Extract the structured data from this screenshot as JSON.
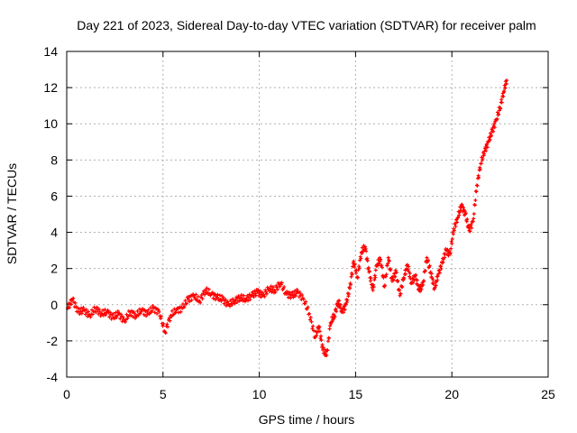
{
  "chart_data": {
    "type": "scatter",
    "title": "Day 221 of 2023, Sidereal Day-to-day VTEC variation (SDTVAR) for receiver palm",
    "xlabel": "GPS time / hours",
    "ylabel": "SDTVAR / TECUs",
    "xlim": [
      0,
      25
    ],
    "ylim": [
      -4,
      14
    ],
    "xticks": [
      "0",
      "5",
      "10",
      "15",
      "20",
      "25"
    ],
    "yticks": [
      "-4",
      "-2",
      "0",
      "2",
      "4",
      "6",
      "8",
      "10",
      "12",
      "14"
    ],
    "grid": true,
    "marker": "+",
    "series": [
      {
        "name": "SDTVAR",
        "color": "#ff0000",
        "x": [
          0.05,
          0.3,
          0.6,
          0.9,
          1.2,
          1.5,
          1.8,
          2.1,
          2.4,
          2.7,
          3.0,
          3.3,
          3.6,
          3.9,
          4.2,
          4.5,
          4.8,
          5.1,
          5.4,
          5.7,
          6.0,
          6.3,
          6.6,
          6.9,
          7.2,
          7.5,
          7.8,
          8.1,
          8.4,
          8.7,
          9.0,
          9.3,
          9.6,
          9.9,
          10.2,
          10.5,
          10.8,
          11.1,
          11.4,
          11.7,
          12.0,
          12.3,
          12.6,
          12.9,
          13.1,
          13.3,
          13.5,
          13.7,
          13.9,
          14.1,
          14.3,
          14.5,
          14.7,
          14.9,
          15.1,
          15.3,
          15.5,
          15.7,
          15.9,
          16.1,
          16.3,
          16.5,
          16.7,
          16.9,
          17.1,
          17.3,
          17.5,
          17.7,
          17.9,
          18.1,
          18.3,
          18.5,
          18.7,
          18.9,
          19.1,
          19.3,
          19.5,
          19.7,
          19.9,
          20.1,
          20.3,
          20.5,
          20.7,
          20.9,
          21.1,
          21.3,
          21.5,
          21.7,
          21.9,
          22.1,
          22.3,
          22.5,
          22.7,
          22.85
        ],
        "y": [
          -0.2,
          0.3,
          -0.4,
          -0.3,
          -0.6,
          -0.2,
          -0.5,
          -0.4,
          -0.7,
          -0.5,
          -0.9,
          -0.4,
          -0.6,
          -0.3,
          -0.5,
          -0.2,
          -0.4,
          -1.5,
          -0.6,
          -0.3,
          -0.2,
          0.3,
          0.5,
          0.2,
          0.8,
          0.6,
          0.4,
          0.3,
          0.0,
          0.2,
          0.4,
          0.3,
          0.5,
          0.7,
          0.5,
          0.9,
          0.8,
          1.2,
          0.6,
          0.5,
          0.7,
          0.3,
          -0.5,
          -1.8,
          -1.2,
          -2.5,
          -2.8,
          -1.0,
          -0.6,
          0.2,
          -0.4,
          0.0,
          0.9,
          2.4,
          1.5,
          2.9,
          3.2,
          1.8,
          0.8,
          2.2,
          2.5,
          1.0,
          2.6,
          1.3,
          1.8,
          0.5,
          1.5,
          2.2,
          1.2,
          1.6,
          0.8,
          1.1,
          2.6,
          1.8,
          0.9,
          1.7,
          2.3,
          3.0,
          2.8,
          4.2,
          4.8,
          5.5,
          5.0,
          4.1,
          4.6,
          6.6,
          7.8,
          8.5,
          9.0,
          9.6,
          10.2,
          10.9,
          11.8,
          12.4
        ]
      }
    ]
  }
}
